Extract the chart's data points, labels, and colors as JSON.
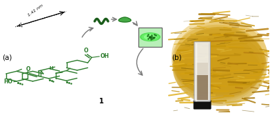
{
  "fig_width": 3.92,
  "fig_height": 1.64,
  "dpi": 100,
  "background_color": "#ffffff",
  "label_a": "(a)",
  "label_b": "(b)",
  "compound_label": "1",
  "dimension_label": "1.41 nm",
  "green_color": "#2a7a2a",
  "dark_green": "#1a5c1a",
  "bright_green": "#33cc33",
  "mid_green": "#44aa44",
  "gray_arrow": "#777777",
  "black": "#000000",
  "mol_ox": 0.155,
  "mol_oy": 0.42,
  "mol_sc": 0.048
}
